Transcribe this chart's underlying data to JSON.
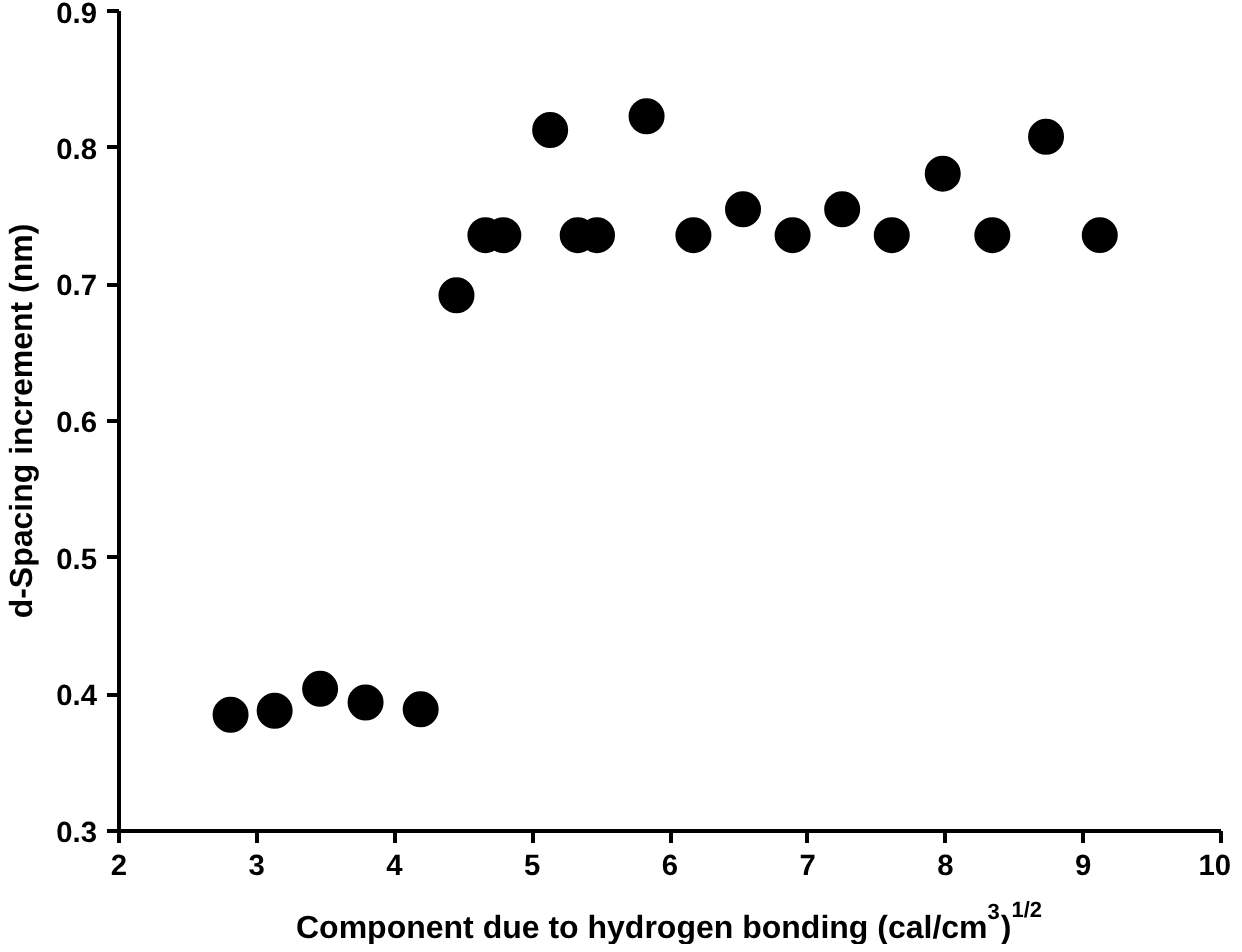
{
  "chart_data": {
    "type": "scatter",
    "xlabel": "Component due to hydrogen bonding (cal/cm$^{3}$)$^{1/2}$",
    "ylabel": "d-Spacing increment (nm)",
    "x": [
      2.81,
      3.13,
      3.46,
      3.79,
      4.19,
      4.45,
      4.66,
      4.79,
      5.13,
      5.33,
      5.47,
      5.83,
      6.17,
      6.53,
      6.89,
      7.25,
      7.61,
      7.98,
      8.34,
      8.73,
      9.12
    ],
    "values": [
      0.385,
      0.388,
      0.404,
      0.394,
      0.389,
      0.692,
      0.736,
      0.736,
      0.813,
      0.736,
      0.736,
      0.823,
      0.736,
      0.755,
      0.736,
      0.755,
      0.736,
      0.781,
      0.736,
      0.808,
      0.736
    ],
    "color": "#000000",
    "marker": "circle",
    "xlim": [
      2,
      10
    ],
    "xticks": [
      2,
      3,
      4,
      5,
      6,
      7,
      8,
      9,
      10
    ],
    "ylim": [
      0.3,
      0.9
    ],
    "yticks": [
      {
        "value": 0.3,
        "label": "0.3"
      },
      {
        "value": 0.4,
        "label": "0.4"
      },
      {
        "value": 0.5,
        "label": "0.5"
      },
      {
        "value": 0.6,
        "label": "0.6"
      },
      {
        "value": 0.7,
        "label": "0.7"
      },
      {
        "value": 0.8,
        "label": "0.8"
      },
      {
        "value": 0.9,
        "label": "0.9"
      }
    ],
    "grid": false
  }
}
